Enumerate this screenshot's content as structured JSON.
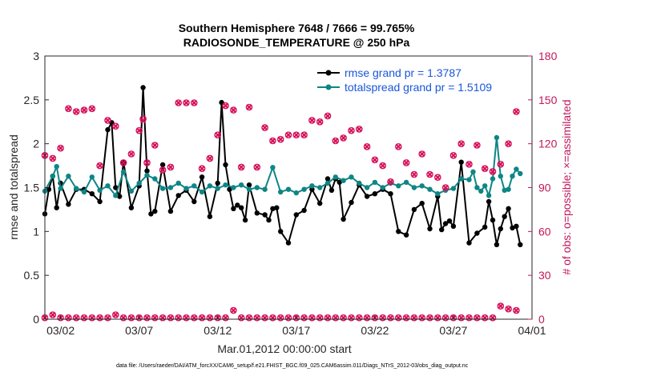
{
  "chart_data": {
    "type": "line",
    "title": "Southern Hemisphere 7648 / 7666 = 99.765%",
    "subtitle": "RADIOSONDE_TEMPERATURE @ 250 hPa",
    "xlabel": "Mar.01,2012 00:00:00 start",
    "ylabel": "rmse and totalspread",
    "y2label": "# of obs: o=possible; ×=assimilated",
    "footnote": "data file: /Users/raeder/DAI/ATM_forcXX/CAM6_setup/f.e21.FHIST_BGC.f09_025.CAM6assim.011/Diags_NTrS_2012-03/obs_diag_output.nc",
    "xlim": [
      0,
      31
    ],
    "ylim": [
      0,
      3
    ],
    "y2lim": [
      0,
      180
    ],
    "xticks": [
      1,
      6,
      11,
      16,
      21,
      26,
      31
    ],
    "xticklabels": [
      "03/02",
      "03/07",
      "03/12",
      "03/17",
      "03/22",
      "03/27",
      "04/01"
    ],
    "yticks": [
      "0",
      "0.5",
      "1",
      "1.5",
      "2",
      "2.5",
      "3"
    ],
    "y2ticks": [
      "0",
      "30",
      "60",
      "90",
      "120",
      "150",
      "180"
    ],
    "legend": {
      "location": "top-right",
      "entries": [
        "rmse grand pr = 1.3787",
        "totalspread grand pr = 1.5109"
      ]
    },
    "colors": {
      "rmse": "#000000",
      "spread": "#0f8585",
      "obs": "#d6105a",
      "legend_text": "#1a56db"
    },
    "series": [
      {
        "name": "rmse",
        "x": [
          0.0,
          0.25,
          0.5,
          0.75,
          1.0,
          1.5,
          2.0,
          2.5,
          3.0,
          3.5,
          4.0,
          4.25,
          4.5,
          4.75,
          5.0,
          5.5,
          6.0,
          6.25,
          6.5,
          6.75,
          7.0,
          7.5,
          8.0,
          8.5,
          9.0,
          9.5,
          10.0,
          10.5,
          11.0,
          11.25,
          11.5,
          11.75,
          12.0,
          12.25,
          12.5,
          12.75,
          13.0,
          13.5,
          14.0,
          14.25,
          14.5,
          14.75,
          15.0,
          15.5,
          16.0,
          16.5,
          17.0,
          17.5,
          18.0,
          18.25,
          18.5,
          18.75,
          19.0,
          19.5,
          20.0,
          20.5,
          21.0,
          21.5,
          22.0,
          22.5,
          23.0,
          23.5,
          24.0,
          24.5,
          25.0,
          25.25,
          25.5,
          25.75,
          26.0,
          26.5,
          27.0,
          27.5,
          28.0,
          28.25,
          28.5,
          28.75,
          29.0,
          29.25,
          29.5,
          29.75,
          30.0,
          30.25
        ],
        "values": [
          1.2,
          1.48,
          1.63,
          1.27,
          1.55,
          1.31,
          1.48,
          1.48,
          1.43,
          1.34,
          2.16,
          2.24,
          1.5,
          1.4,
          1.79,
          1.27,
          1.52,
          2.64,
          1.69,
          1.2,
          1.23,
          1.76,
          1.23,
          1.41,
          1.47,
          1.34,
          1.62,
          1.17,
          1.55,
          2.47,
          1.76,
          1.48,
          1.26,
          1.3,
          1.27,
          1.13,
          1.53,
          1.21,
          1.19,
          1.13,
          1.26,
          1.27,
          1.0,
          0.87,
          1.19,
          1.24,
          1.48,
          1.32,
          1.6,
          1.47,
          1.6,
          1.56,
          1.14,
          1.33,
          1.53,
          1.4,
          1.43,
          1.48,
          1.43,
          1.0,
          0.96,
          1.25,
          1.32,
          1.03,
          1.4,
          1.02,
          1.09,
          1.12,
          1.06,
          1.79,
          0.87,
          0.98,
          1.05,
          1.34,
          1.13,
          0.85,
          1.03,
          1.17,
          1.26,
          1.04,
          1.06,
          0.85
        ]
      },
      {
        "name": "totalspread",
        "x": [
          0.0,
          0.5,
          0.75,
          1.0,
          1.5,
          2.0,
          2.5,
          3.0,
          3.5,
          4.0,
          4.5,
          5.0,
          5.5,
          6.0,
          6.5,
          7.0,
          7.5,
          8.0,
          8.5,
          9.0,
          9.5,
          10.0,
          10.5,
          11.0,
          11.5,
          12.0,
          12.5,
          13.0,
          13.5,
          14.0,
          14.5,
          15.0,
          15.5,
          16.0,
          16.5,
          17.0,
          17.5,
          18.0,
          18.5,
          19.0,
          19.5,
          20.0,
          20.5,
          21.0,
          21.5,
          22.0,
          22.5,
          23.0,
          23.5,
          24.0,
          24.5,
          25.0,
          25.5,
          26.0,
          26.5,
          27.0,
          27.25,
          27.5,
          27.75,
          28.0,
          28.25,
          28.5,
          28.75,
          29.0,
          29.25,
          29.5,
          29.75,
          30.0,
          30.25
        ],
        "values": [
          1.46,
          1.63,
          1.74,
          1.49,
          1.63,
          1.49,
          1.45,
          1.62,
          1.47,
          1.52,
          1.41,
          1.68,
          1.46,
          1.55,
          1.64,
          1.6,
          1.49,
          1.5,
          1.55,
          1.49,
          1.52,
          1.45,
          1.52,
          1.49,
          1.53,
          1.5,
          1.53,
          1.48,
          1.5,
          1.48,
          1.73,
          1.45,
          1.48,
          1.44,
          1.48,
          1.52,
          1.5,
          1.55,
          1.62,
          1.58,
          1.62,
          1.55,
          1.5,
          1.56,
          1.5,
          1.55,
          1.52,
          1.56,
          1.5,
          1.52,
          1.48,
          1.43,
          1.47,
          1.49,
          1.6,
          1.59,
          1.68,
          1.5,
          1.46,
          1.52,
          1.41,
          1.6,
          2.07,
          1.63,
          1.47,
          1.48,
          1.63,
          1.71,
          1.66
        ]
      }
    ],
    "obs_possible": {
      "x": [
        0,
        0.5,
        1,
        1.5,
        2,
        2.5,
        3,
        3.5,
        4,
        4.5,
        5,
        5.5,
        6,
        6.25,
        6.5,
        7,
        7.5,
        8,
        8.5,
        9,
        9.5,
        10,
        10.5,
        11,
        11.5,
        12,
        12.5,
        13,
        13.5,
        14,
        14.5,
        15,
        15.5,
        16,
        16.5,
        17,
        17.5,
        18,
        18.5,
        19,
        19.5,
        20,
        20.5,
        21,
        21.5,
        22,
        22.5,
        23,
        23.5,
        24,
        24.5,
        25,
        25.5,
        26,
        26.5,
        27,
        27.5,
        28,
        28.5,
        29,
        29.5,
        30
      ],
      "values": [
        112,
        110,
        117,
        144,
        142,
        143,
        144,
        105,
        136,
        132,
        107,
        113,
        129,
        137,
        107,
        119,
        102,
        104,
        148,
        148,
        148,
        103,
        110,
        126,
        146,
        143,
        104,
        145,
        104,
        131,
        122,
        123,
        126,
        126,
        126,
        136,
        135,
        139,
        122,
        124,
        129,
        130,
        118,
        109,
        105,
        94,
        118,
        107,
        99,
        113,
        99,
        97,
        90,
        112,
        120,
        106,
        119,
        103,
        101,
        106,
        120,
        142
      ]
    },
    "obs_assimilated": {
      "x": [
        0,
        0.5,
        1,
        1.5,
        2,
        2.5,
        3,
        3.5,
        4,
        4.5,
        5,
        5.5,
        6,
        6.25,
        6.5,
        7,
        7.5,
        8,
        8.5,
        9,
        9.5,
        10,
        10.5,
        11,
        11.5,
        12,
        12.5,
        13,
        13.5,
        14,
        14.5,
        15,
        15.5,
        16,
        16.5,
        17,
        17.5,
        18,
        18.5,
        19,
        19.5,
        20,
        20.5,
        21,
        21.5,
        22,
        22.5,
        23,
        23.5,
        24,
        24.5,
        25,
        25.5,
        26,
        26.5,
        27,
        27.5,
        28,
        28.5,
        29,
        29.5,
        30
      ],
      "values": [
        112,
        110,
        117,
        144,
        142,
        143,
        144,
        105,
        136,
        132,
        107,
        113,
        129,
        136,
        107,
        119,
        102,
        104,
        148,
        148,
        148,
        103,
        110,
        126,
        146,
        143,
        104,
        145,
        104,
        131,
        122,
        123,
        126,
        126,
        126,
        136,
        135,
        139,
        122,
        124,
        129,
        130,
        118,
        109,
        105,
        94,
        118,
        107,
        99,
        113,
        99,
        97,
        90,
        112,
        120,
        106,
        119,
        103,
        101,
        106,
        120,
        142
      ]
    },
    "obs_near_zero": {
      "x": [
        0,
        0.5,
        1,
        1.5,
        2,
        2.5,
        3,
        3.5,
        4,
        4.5,
        5,
        5.5,
        6,
        6.5,
        7,
        7.5,
        8,
        8.5,
        9,
        9.5,
        10,
        10.5,
        11,
        11.5,
        12,
        12.5,
        13,
        13.5,
        14,
        14.5,
        15,
        15.5,
        16,
        16.5,
        17,
        17.5,
        18,
        18.5,
        19,
        19.5,
        20,
        20.5,
        21,
        21.5,
        22,
        22.5,
        23,
        23.5,
        24,
        24.5,
        25,
        25.5,
        26,
        26.5,
        27,
        27.5,
        28,
        28.5,
        29,
        29.5,
        30
      ],
      "values": [
        1,
        3,
        1,
        1,
        1,
        1,
        1,
        1,
        1,
        3,
        1,
        1,
        1,
        1,
        1,
        1,
        1,
        1,
        1,
        1,
        1,
        1,
        1,
        1,
        6,
        1,
        1,
        1,
        1,
        1,
        1,
        1,
        1,
        1,
        1,
        1,
        1,
        1,
        1,
        1,
        1,
        1,
        1,
        1,
        1,
        1,
        1,
        1,
        1,
        1,
        1,
        1,
        1,
        1,
        1,
        1,
        1,
        1,
        9,
        7,
        6
      ]
    }
  }
}
